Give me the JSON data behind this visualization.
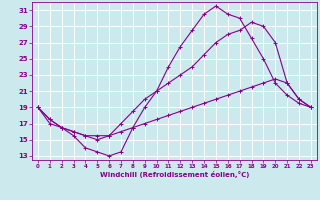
{
  "xlabel": "Windchill (Refroidissement éolien,°C)",
  "ylabel": "",
  "xlim": [
    -0.5,
    23.5
  ],
  "ylim": [
    12.5,
    32
  ],
  "yticks": [
    13,
    15,
    17,
    19,
    21,
    23,
    25,
    27,
    29,
    31
  ],
  "xticks": [
    0,
    1,
    2,
    3,
    4,
    5,
    6,
    7,
    8,
    9,
    10,
    11,
    12,
    13,
    14,
    15,
    16,
    17,
    18,
    19,
    20,
    21,
    22,
    23
  ],
  "background_color": "#cce9ed",
  "grid_color": "#ffffff",
  "line_color": "#880088",
  "lines": [
    {
      "x": [
        0,
        1,
        2,
        3,
        4,
        5,
        6,
        7,
        8,
        9,
        10,
        11,
        12,
        13,
        14,
        15,
        16,
        17,
        18,
        19,
        20,
        21,
        22,
        23
      ],
      "y": [
        19,
        17,
        16.5,
        15.5,
        14,
        13.5,
        13,
        13.5,
        16.5,
        19,
        21,
        24,
        26.5,
        28.5,
        30.5,
        31.5,
        30.5,
        30,
        27.5,
        25,
        22,
        20.5,
        19.5,
        19
      ]
    },
    {
      "x": [
        0,
        1,
        2,
        3,
        4,
        5,
        6,
        7,
        8,
        9,
        10,
        11,
        12,
        13,
        14,
        15,
        16,
        17,
        18,
        19,
        20,
        21,
        22,
        23
      ],
      "y": [
        19,
        17.5,
        16.5,
        16,
        15.5,
        15,
        15.5,
        17,
        18.5,
        20,
        21,
        22,
        23,
        24,
        25.5,
        27,
        28,
        28.5,
        29.5,
        29,
        27,
        22,
        20,
        19
      ]
    },
    {
      "x": [
        0,
        1,
        2,
        3,
        4,
        5,
        6,
        7,
        8,
        9,
        10,
        11,
        12,
        13,
        14,
        15,
        16,
        17,
        18,
        19,
        20,
        21,
        22,
        23
      ],
      "y": [
        19,
        17.5,
        16.5,
        16,
        15.5,
        15.5,
        15.5,
        16,
        16.5,
        17,
        17.5,
        18,
        18.5,
        19,
        19.5,
        20,
        20.5,
        21,
        21.5,
        22,
        22.5,
        22,
        20,
        19
      ]
    }
  ]
}
